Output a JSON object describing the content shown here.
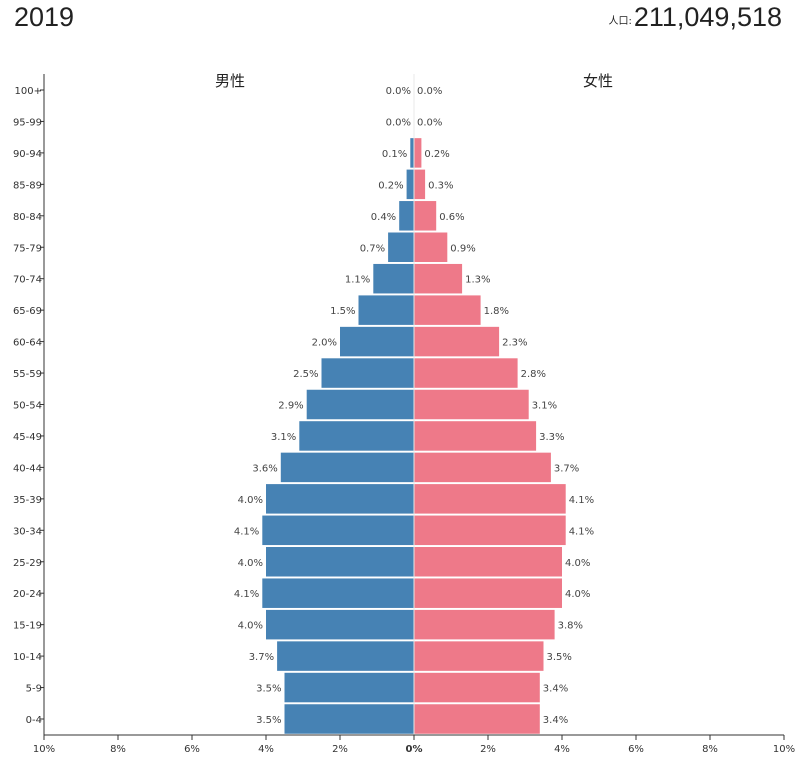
{
  "header": {
    "year": "2019",
    "population_label": "人口:",
    "population": "211,049,518"
  },
  "chart_data": {
    "type": "bar",
    "orientation": "horizontal-mirrored",
    "categories": [
      "0-4",
      "5-9",
      "10-14",
      "15-19",
      "20-24",
      "25-29",
      "30-34",
      "35-39",
      "40-44",
      "45-49",
      "50-54",
      "55-59",
      "60-64",
      "65-69",
      "70-74",
      "75-79",
      "80-84",
      "85-89",
      "90-94",
      "95-99",
      "100+"
    ],
    "series": [
      {
        "name": "男性",
        "side": "left",
        "color": "#4682b4",
        "values": [
          3.5,
          3.5,
          3.7,
          4.0,
          4.1,
          4.0,
          4.1,
          4.0,
          3.6,
          3.1,
          2.9,
          2.5,
          2.0,
          1.5,
          1.1,
          0.7,
          0.4,
          0.2,
          0.1,
          0.0,
          0.0
        ],
        "labels": [
          "3.5%",
          "3.5%",
          "3.7%",
          "4.0%",
          "4.1%",
          "4.0%",
          "4.1%",
          "4.0%",
          "3.6%",
          "3.1%",
          "2.9%",
          "2.5%",
          "2.0%",
          "1.5%",
          "1.1%",
          "0.7%",
          "0.4%",
          "0.2%",
          "0.1%",
          "0.0%",
          "0.0%"
        ]
      },
      {
        "name": "女性",
        "side": "right",
        "color": "#ee7989",
        "values": [
          3.4,
          3.4,
          3.5,
          3.8,
          4.0,
          4.0,
          4.1,
          4.1,
          3.7,
          3.3,
          3.1,
          2.8,
          2.3,
          1.8,
          1.3,
          0.9,
          0.6,
          0.3,
          0.2,
          0.0,
          0.0
        ],
        "labels": [
          "3.4%",
          "3.4%",
          "3.5%",
          "3.8%",
          "4.0%",
          "4.0%",
          "4.1%",
          "4.1%",
          "3.7%",
          "3.3%",
          "3.1%",
          "2.8%",
          "2.3%",
          "1.8%",
          "1.3%",
          "0.9%",
          "0.6%",
          "0.3%",
          "0.2%",
          "0.0%",
          "0.0%"
        ]
      }
    ],
    "x_ticks": [
      "10%",
      "8%",
      "6%",
      "4%",
      "2%",
      "0%",
      "2%",
      "4%",
      "6%",
      "8%",
      "10%"
    ],
    "xlim": [
      -10,
      10
    ],
    "grid": false,
    "legend": "none"
  }
}
